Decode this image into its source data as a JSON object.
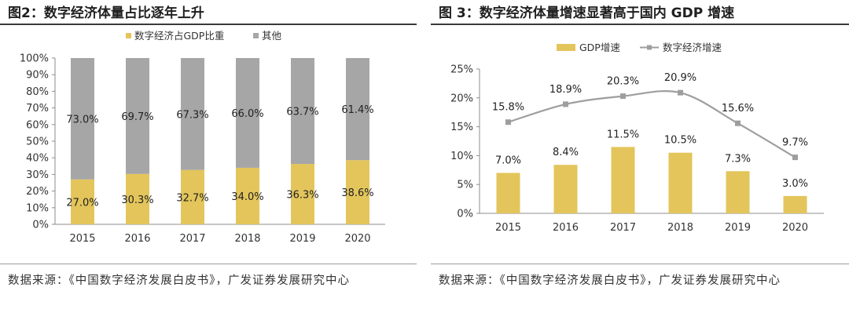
{
  "colors": {
    "gdp": "#E3C55B",
    "other": "#A6A6A6",
    "line": "#9E9E9E",
    "axis": "#8c8c8c"
  },
  "charts": [
    {
      "title": "图2：数字经济体量占比逐年上升",
      "source": "数据来源：《中国数字经济发展白皮书》，广发证券发展研究中心",
      "chart_data": {
        "type": "bar",
        "stacked": true,
        "categories": [
          "2015",
          "2016",
          "2017",
          "2018",
          "2019",
          "2020"
        ],
        "series": [
          {
            "name": "数字经济占GDP比重",
            "values": [
              27.0,
              30.3,
              32.7,
              34.0,
              36.3,
              38.6
            ],
            "labels": [
              "27.0%",
              "30.3%",
              "32.7%",
              "34.0%",
              "36.3%",
              "38.6%"
            ]
          },
          {
            "name": "其他",
            "values": [
              73.0,
              69.7,
              67.3,
              66.0,
              63.7,
              61.4
            ],
            "labels": [
              "73.0%",
              "69.7%",
              "67.3%",
              "66.0%",
              "63.7%",
              "61.4%"
            ]
          }
        ],
        "ylim": [
          0,
          100
        ],
        "yticks": [
          "0%",
          "10%",
          "20%",
          "30%",
          "40%",
          "50%",
          "60%",
          "70%",
          "80%",
          "90%",
          "100%"
        ],
        "legend": "top",
        "grid": false
      }
    },
    {
      "title": "图 3：数字经济体量增速显著高于国内 GDP 增速",
      "source": "数据来源：《中国数字经济发展白皮书》，广发证券发展研究中心",
      "chart_data": {
        "type": "bar+line",
        "categories": [
          "2015",
          "2016",
          "2017",
          "2018",
          "2019",
          "2020"
        ],
        "series": [
          {
            "name": "GDP增速",
            "type": "bar",
            "values": [
              7.0,
              8.4,
              11.5,
              10.5,
              7.3,
              3.0
            ],
            "labels": [
              "7.0%",
              "8.4%",
              "11.5%",
              "10.5%",
              "7.3%",
              "3.0%"
            ]
          },
          {
            "name": "数字经济增速",
            "type": "line",
            "values": [
              15.8,
              18.9,
              20.3,
              20.9,
              15.6,
              9.7
            ],
            "labels": [
              "15.8%",
              "18.9%",
              "20.3%",
              "20.9%",
              "15.6%",
              "9.7%"
            ]
          }
        ],
        "ylim": [
          0,
          25
        ],
        "yticks": [
          "0%",
          "5%",
          "10%",
          "15%",
          "20%",
          "25%"
        ],
        "legend": "top",
        "grid": false
      }
    }
  ]
}
